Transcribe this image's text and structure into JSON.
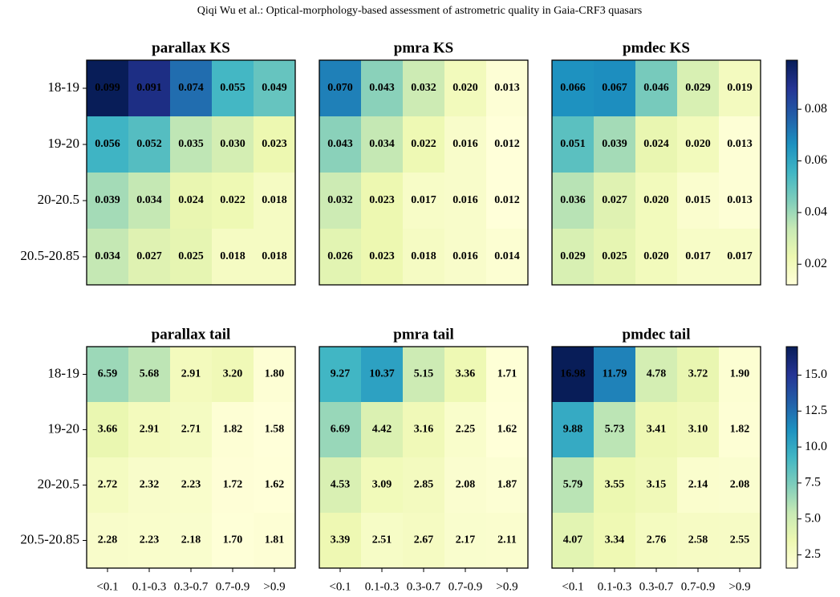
{
  "page_title": "Qiqi Wu et al.: Optical-morphology-based assessment of astrometric quality in Gaia-CRF3 quasars",
  "colormap": "YlGnBu",
  "x_categories": [
    "<0.1",
    "0.1-0.3",
    "0.3-0.7",
    "0.7-0.9",
    ">0.9"
  ],
  "y_categories": [
    "18-19",
    "19-20",
    "20-20.5",
    "20.5-20.85"
  ],
  "colorbars": [
    {
      "zlim": [
        0.012,
        0.099
      ],
      "ticks": [
        0.02,
        0.04,
        0.06,
        0.08
      ]
    },
    {
      "zlim": [
        1.58,
        16.98
      ],
      "ticks": [
        2.5,
        {
          "value": 5,
          "label": "5.0"
        },
        7.5,
        {
          "value": 10,
          "label": "10.0"
        },
        12.5,
        {
          "value": 15,
          "label": "15.0"
        }
      ]
    }
  ],
  "chart_data": [
    {
      "type": "heatmap",
      "title": "parallax KS",
      "values": [
        [
          0.099,
          0.091,
          0.074,
          0.055,
          0.049
        ],
        [
          0.056,
          0.052,
          0.035,
          0.03,
          0.023
        ],
        [
          0.039,
          0.034,
          0.024,
          0.022,
          0.018
        ],
        [
          0.034,
          0.027,
          0.025,
          0.018,
          0.018
        ]
      ],
      "value_labels": [
        [
          "0.099",
          "0.091",
          "0.074",
          "0.055",
          "0.049"
        ],
        [
          "0.056",
          "0.052",
          "0.035",
          "0.030",
          "0.023"
        ],
        [
          "0.039",
          "0.034",
          "0.024",
          "0.022",
          "0.018"
        ],
        [
          "0.034",
          "0.027",
          "0.025",
          "0.018",
          "0.018"
        ]
      ]
    },
    {
      "type": "heatmap",
      "title": "pmra KS",
      "values": [
        [
          0.07,
          0.043,
          0.032,
          0.02,
          0.013
        ],
        [
          0.043,
          0.034,
          0.022,
          0.016,
          0.012
        ],
        [
          0.032,
          0.023,
          0.017,
          0.016,
          0.012
        ],
        [
          0.026,
          0.023,
          0.018,
          0.016,
          0.014
        ]
      ],
      "value_labels": [
        [
          "0.070",
          "0.043",
          "0.032",
          "0.020",
          "0.013"
        ],
        [
          "0.043",
          "0.034",
          "0.022",
          "0.016",
          "0.012"
        ],
        [
          "0.032",
          "0.023",
          "0.017",
          "0.016",
          "0.012"
        ],
        [
          "0.026",
          "0.023",
          "0.018",
          "0.016",
          "0.014"
        ]
      ]
    },
    {
      "type": "heatmap",
      "title": "pmdec KS",
      "values": [
        [
          0.066,
          0.067,
          0.046,
          0.029,
          0.019
        ],
        [
          0.051,
          0.039,
          0.024,
          0.02,
          0.013
        ],
        [
          0.036,
          0.027,
          0.02,
          0.015,
          0.013
        ],
        [
          0.029,
          0.025,
          0.02,
          0.017,
          0.017
        ]
      ],
      "value_labels": [
        [
          "0.066",
          "0.067",
          "0.046",
          "0.029",
          "0.019"
        ],
        [
          "0.051",
          "0.039",
          "0.024",
          "0.020",
          "0.013"
        ],
        [
          "0.036",
          "0.027",
          "0.020",
          "0.015",
          "0.013"
        ],
        [
          "0.029",
          "0.025",
          "0.020",
          "0.017",
          "0.017"
        ]
      ]
    },
    {
      "type": "heatmap",
      "title": "parallax tail",
      "values": [
        [
          6.59,
          5.68,
          2.91,
          3.2,
          1.8
        ],
        [
          3.66,
          2.91,
          2.71,
          1.82,
          1.58
        ],
        [
          2.72,
          2.32,
          2.23,
          1.72,
          1.62
        ],
        [
          2.28,
          2.23,
          2.18,
          1.7,
          1.81
        ]
      ],
      "value_labels": [
        [
          "6.59",
          "5.68",
          "2.91",
          "3.20",
          "1.80"
        ],
        [
          "3.66",
          "2.91",
          "2.71",
          "1.82",
          "1.58"
        ],
        [
          "2.72",
          "2.32",
          "2.23",
          "1.72",
          "1.62"
        ],
        [
          "2.28",
          "2.23",
          "2.18",
          "1.70",
          "1.81"
        ]
      ]
    },
    {
      "type": "heatmap",
      "title": "pmra tail",
      "values": [
        [
          9.27,
          10.37,
          5.15,
          3.36,
          1.71
        ],
        [
          6.69,
          4.42,
          3.16,
          2.25,
          1.62
        ],
        [
          4.53,
          3.09,
          2.85,
          2.08,
          1.87
        ],
        [
          3.39,
          2.51,
          2.67,
          2.17,
          2.11
        ]
      ],
      "value_labels": [
        [
          "9.27",
          "10.37",
          "5.15",
          "3.36",
          "1.71"
        ],
        [
          "6.69",
          "4.42",
          "3.16",
          "2.25",
          "1.62"
        ],
        [
          "4.53",
          "3.09",
          "2.85",
          "2.08",
          "1.87"
        ],
        [
          "3.39",
          "2.51",
          "2.67",
          "2.17",
          "2.11"
        ]
      ]
    },
    {
      "type": "heatmap",
      "title": "pmdec tail",
      "values": [
        [
          16.98,
          11.79,
          4.78,
          3.72,
          1.9
        ],
        [
          9.88,
          5.73,
          3.41,
          3.1,
          1.82
        ],
        [
          5.79,
          3.55,
          3.15,
          2.14,
          2.08
        ],
        [
          4.07,
          3.34,
          2.76,
          2.58,
          2.55
        ]
      ],
      "value_labels": [
        [
          "16.98",
          "11.79",
          "4.78",
          "3.72",
          "1.90"
        ],
        [
          "9.88",
          "5.73",
          "3.41",
          "3.10",
          "1.82"
        ],
        [
          "5.79",
          "3.55",
          "3.15",
          "2.14",
          "2.08"
        ],
        [
          "4.07",
          "3.34",
          "2.76",
          "2.58",
          "2.55"
        ]
      ]
    }
  ]
}
